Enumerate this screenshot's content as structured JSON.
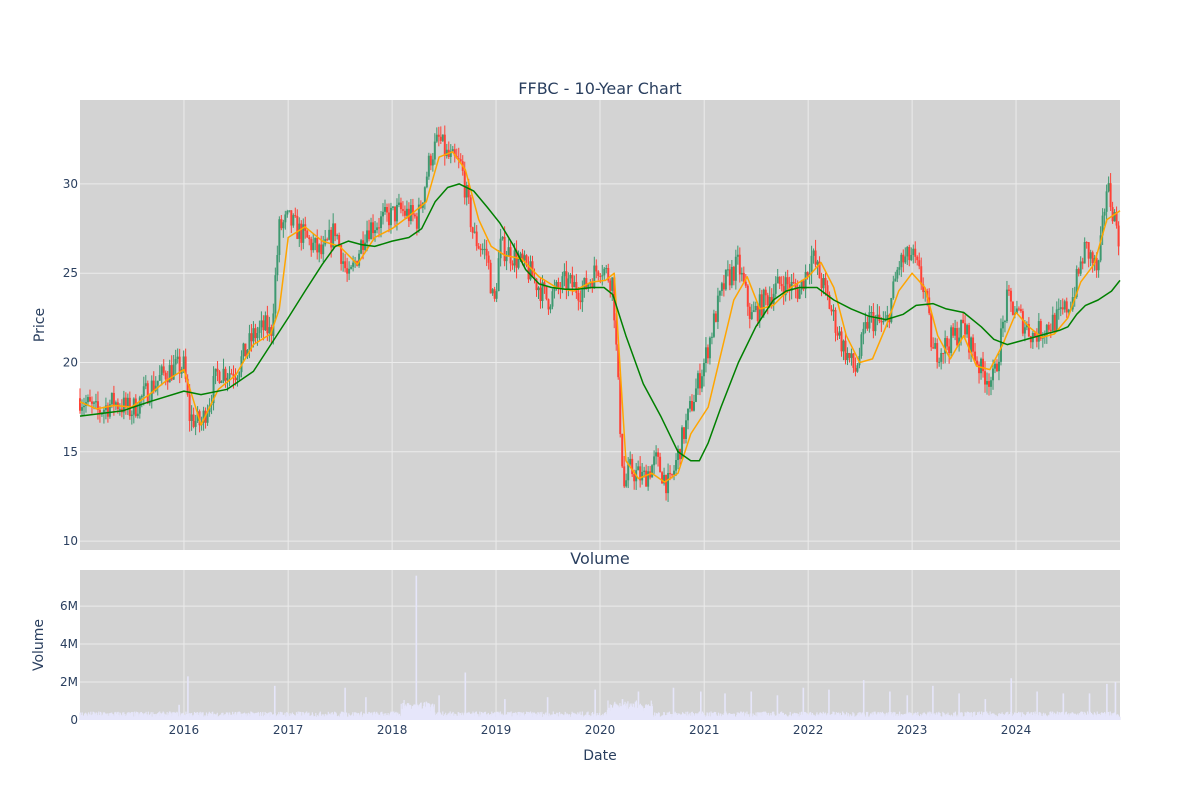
{
  "chart_data": [
    {
      "type": "candlestick",
      "title": "FFBC - 10-Year Chart",
      "xlabel": "",
      "ylabel": "Price",
      "x_range": [
        "2015-01-01",
        "2024-12-31"
      ],
      "ylim": [
        9.5,
        34.7
      ],
      "y_ticks": [
        10,
        15,
        20,
        25,
        30
      ],
      "grid": true,
      "background": "#d3d3d3",
      "colors": {
        "up": "#3d9970",
        "down": "#ff4136",
        "ma_short": "#ffa500",
        "ma_long": "#008000"
      },
      "series": [
        {
          "kind": "close",
          "x": [
            "2015-01-01",
            "2015-03-01",
            "2015-05-01",
            "2015-07-01",
            "2015-09-01",
            "2015-11-01",
            "2016-01-01",
            "2016-01-20",
            "2016-03-01",
            "2016-05-01",
            "2016-07-01",
            "2016-09-01",
            "2016-10-15",
            "2016-11-01",
            "2016-12-01",
            "2017-01-01",
            "2017-03-01",
            "2017-05-01",
            "2017-06-15",
            "2017-08-01",
            "2017-09-01",
            "2017-10-01",
            "2017-12-01",
            "2018-02-01",
            "2018-04-01",
            "2018-05-15",
            "2018-06-15",
            "2018-07-15",
            "2018-09-01",
            "2018-10-15",
            "2018-12-01",
            "2018-12-25",
            "2019-01-15",
            "2019-03-01",
            "2019-05-01",
            "2019-07-01",
            "2019-09-01",
            "2019-11-01",
            "2020-01-01",
            "2020-02-15",
            "2020-03-10",
            "2020-03-25",
            "2020-04-15",
            "2020-06-01",
            "2020-07-15",
            "2020-09-01",
            "2020-10-20",
            "2020-11-15",
            "2021-01-01",
            "2021-02-15",
            "2021-03-15",
            "2021-05-01",
            "2021-06-15",
            "2021-08-01",
            "2021-10-01",
            "2021-12-01",
            "2022-01-15",
            "2022-03-01",
            "2022-05-01",
            "2022-06-15",
            "2022-08-01",
            "2022-10-01",
            "2022-11-15",
            "2023-01-01",
            "2023-02-15",
            "2023-03-15",
            "2023-05-01",
            "2023-07-01",
            "2023-09-01",
            "2023-10-15",
            "2023-12-01",
            "2024-01-15",
            "2024-03-01",
            "2024-04-15",
            "2024-06-01",
            "2024-07-15",
            "2024-09-01",
            "2024-10-15",
            "2024-11-15",
            "2024-12-31"
          ],
          "y": [
            18.0,
            17.2,
            17.8,
            17.3,
            18.5,
            19.5,
            19.8,
            17.0,
            16.5,
            19.5,
            19.5,
            21.5,
            22.0,
            21.5,
            27.5,
            28.0,
            27.0,
            26.0,
            27.5,
            24.5,
            26.0,
            27.5,
            28.0,
            28.5,
            28.0,
            31.5,
            32.5,
            31.5,
            31.0,
            27.0,
            26.0,
            23.0,
            26.5,
            26.0,
            25.0,
            23.5,
            24.5,
            24.0,
            25.5,
            24.5,
            17.0,
            13.0,
            14.0,
            13.5,
            14.5,
            13.0,
            16.0,
            17.5,
            20.0,
            23.0,
            24.5,
            25.5,
            22.5,
            23.5,
            24.5,
            24.0,
            26.0,
            24.0,
            21.0,
            19.5,
            22.5,
            22.0,
            25.5,
            26.0,
            24.0,
            20.5,
            21.0,
            22.0,
            19.5,
            19.0,
            23.5,
            22.5,
            21.5,
            22.0,
            22.5,
            23.5,
            26.5,
            25.0,
            30.0,
            26.8
          ]
        },
        {
          "kind": "ma_short",
          "x": [
            "2015-01-01",
            "2015-03-01",
            "2015-05-01",
            "2015-07-01",
            "2015-09-01",
            "2015-11-01",
            "2016-01-01",
            "2016-02-01",
            "2016-03-01",
            "2016-05-01",
            "2016-07-01",
            "2016-09-01",
            "2016-11-01",
            "2016-12-01",
            "2017-01-01",
            "2017-03-01",
            "2017-05-01",
            "2017-07-01",
            "2017-09-01",
            "2017-11-01",
            "2018-01-01",
            "2018-03-01",
            "2018-05-01",
            "2018-06-15",
            "2018-08-01",
            "2018-09-15",
            "2018-11-01",
            "2018-12-15",
            "2019-02-01",
            "2019-04-01",
            "2019-06-01",
            "2019-08-01",
            "2019-10-01",
            "2019-12-01",
            "2020-01-20",
            "2020-02-20",
            "2020-04-01",
            "2020-05-15",
            "2020-07-01",
            "2020-08-15",
            "2020-10-01",
            "2020-11-15",
            "2021-01-15",
            "2021-03-01",
            "2021-04-15",
            "2021-06-01",
            "2021-07-15",
            "2021-09-01",
            "2021-11-01",
            "2022-01-01",
            "2022-02-15",
            "2022-04-01",
            "2022-05-15",
            "2022-07-01",
            "2022-08-15",
            "2022-10-01",
            "2022-11-15",
            "2023-01-01",
            "2023-02-15",
            "2023-04-01",
            "2023-05-15",
            "2023-07-01",
            "2023-08-15",
            "2023-10-01",
            "2023-11-15",
            "2024-01-01",
            "2024-02-15",
            "2024-04-01",
            "2024-05-15",
            "2024-07-01",
            "2024-08-15",
            "2024-10-01",
            "2024-11-15",
            "2024-12-31"
          ],
          "y": [
            17.8,
            17.4,
            17.6,
            17.5,
            18.2,
            19.0,
            19.6,
            18.0,
            16.5,
            18.5,
            19.3,
            21.0,
            21.6,
            23.0,
            27.0,
            27.6,
            26.8,
            26.5,
            25.5,
            27.0,
            27.5,
            28.2,
            29.0,
            31.5,
            31.8,
            30.8,
            28.0,
            26.5,
            26.0,
            25.8,
            24.8,
            24.2,
            24.0,
            24.5,
            24.6,
            25.0,
            14.5,
            13.5,
            13.8,
            13.3,
            13.8,
            16.0,
            17.5,
            20.5,
            23.5,
            24.8,
            23.0,
            23.2,
            24.2,
            24.8,
            25.6,
            24.2,
            21.5,
            20.0,
            20.2,
            22.0,
            24.0,
            25.0,
            24.2,
            21.5,
            20.2,
            21.5,
            19.8,
            19.6,
            21.0,
            22.8,
            22.0,
            21.4,
            21.6,
            22.5,
            24.5,
            25.5,
            28.0,
            28.5
          ]
        },
        {
          "kind": "ma_long",
          "x": [
            "2015-01-01",
            "2015-06-01",
            "2015-09-01",
            "2016-01-01",
            "2016-03-01",
            "2016-06-01",
            "2016-09-01",
            "2016-11-01",
            "2017-01-01",
            "2017-03-01",
            "2017-05-01",
            "2017-06-15",
            "2017-08-01",
            "2017-09-15",
            "2017-11-01",
            "2018-01-01",
            "2018-03-01",
            "2018-04-15",
            "2018-06-01",
            "2018-07-15",
            "2018-08-25",
            "2018-10-15",
            "2018-12-01",
            "2019-01-15",
            "2019-03-01",
            "2019-04-15",
            "2019-06-01",
            "2019-07-15",
            "2019-09-01",
            "2019-10-15",
            "2019-12-01",
            "2020-01-15",
            "2020-02-15",
            "2020-04-01",
            "2020-06-01",
            "2020-08-01",
            "2020-10-01",
            "2020-11-15",
            "2020-12-15",
            "2021-01-15",
            "2021-03-01",
            "2021-05-01",
            "2021-07-01",
            "2021-09-01",
            "2021-10-15",
            "2021-12-01",
            "2022-02-01",
            "2022-04-01",
            "2022-06-01",
            "2022-08-01",
            "2022-10-01",
            "2022-12-01",
            "2023-01-15",
            "2023-03-15",
            "2023-05-01",
            "2023-07-01",
            "2023-09-01",
            "2023-10-15",
            "2023-12-01",
            "2024-01-15",
            "2024-03-01",
            "2024-04-15",
            "2024-06-01",
            "2024-07-01",
            "2024-08-01",
            "2024-09-01",
            "2024-10-15",
            "2024-12-01",
            "2024-12-31"
          ],
          "y": [
            17.0,
            17.3,
            17.8,
            18.4,
            18.2,
            18.5,
            19.5,
            21.0,
            22.5,
            24.0,
            25.5,
            26.5,
            26.8,
            26.6,
            26.5,
            26.8,
            27.0,
            27.5,
            29.0,
            29.8,
            30.0,
            29.6,
            28.7,
            27.8,
            26.6,
            25.2,
            24.4,
            24.2,
            24.1,
            24.1,
            24.2,
            24.2,
            23.8,
            21.5,
            18.8,
            17.0,
            15.0,
            14.5,
            14.5,
            15.5,
            17.5,
            20.0,
            22.0,
            23.5,
            24.0,
            24.2,
            24.2,
            23.5,
            23.0,
            22.6,
            22.4,
            22.7,
            23.2,
            23.3,
            23.0,
            22.8,
            22.0,
            21.3,
            21.0,
            21.2,
            21.4,
            21.6,
            21.8,
            22.0,
            22.7,
            23.2,
            23.5,
            24.0,
            24.6
          ]
        }
      ]
    },
    {
      "type": "bar",
      "title": "Volume",
      "xlabel": "Date",
      "ylabel": "Volume",
      "x_tick_labels": [
        "2016",
        "2017",
        "2018",
        "2019",
        "2020",
        "2021",
        "2022",
        "2023",
        "2024"
      ],
      "y_tick_labels": [
        "0",
        "2M",
        "4M",
        "6M"
      ],
      "y_ticks": [
        0,
        2000000,
        4000000,
        6000000
      ],
      "ylim": [
        0,
        7900000
      ],
      "grid": true,
      "background": "#d3d3d3",
      "bar_color": "#e6e6fa",
      "series": [
        {
          "kind": "volume_spikes",
          "x": [
            "2015-12-15",
            "2016-01-15",
            "2016-11-15",
            "2017-07-20",
            "2017-10-01",
            "2018-03-27",
            "2018-06-15",
            "2018-09-15",
            "2019-02-01",
            "2019-07-01",
            "2019-12-15",
            "2020-03-20",
            "2020-05-15",
            "2020-09-15",
            "2020-12-20",
            "2021-03-15",
            "2021-06-15",
            "2021-09-15",
            "2021-12-15",
            "2022-03-15",
            "2022-07-15",
            "2022-10-15",
            "2022-12-15",
            "2023-03-15",
            "2023-06-15",
            "2023-09-15",
            "2023-12-15",
            "2024-03-15",
            "2024-06-15",
            "2024-09-15",
            "2024-11-15",
            "2024-12-15"
          ],
          "values": [
            800000,
            2300000,
            1800000,
            1700000,
            1200000,
            7600000,
            1300000,
            2500000,
            1100000,
            1200000,
            1600000,
            1100000,
            1500000,
            1700000,
            1500000,
            1400000,
            1500000,
            1300000,
            1700000,
            1600000,
            2100000,
            1500000,
            1300000,
            1800000,
            1400000,
            1100000,
            2200000,
            1500000,
            1400000,
            1400000,
            1900000,
            2000000
          ]
        }
      ]
    }
  ]
}
